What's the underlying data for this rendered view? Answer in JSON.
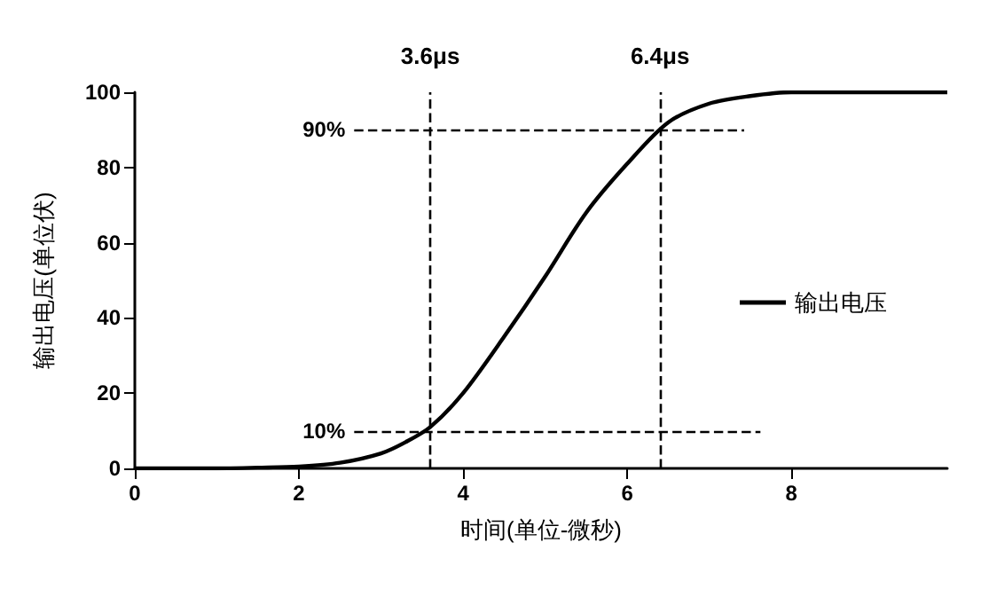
{
  "chart_data": {
    "type": "line",
    "xlabel": "时间(单位-微秒)",
    "ylabel": "输出电压(单位伏)",
    "x": [
      0,
      1,
      1.5,
      2,
      2.5,
      3,
      3.3,
      3.6,
      4,
      4.5,
      5,
      5.5,
      6,
      6.5,
      7,
      7.5,
      8,
      9,
      9.9
    ],
    "series": [
      {
        "name": "输出电压",
        "color": "#000000",
        "values": [
          0,
          0,
          0.2,
          0.5,
          1.5,
          4,
          7,
          11,
          20,
          35,
          51,
          68,
          81,
          92,
          97,
          99,
          100,
          100,
          100
        ]
      }
    ],
    "xlim": [
      0,
      9.9
    ],
    "xticks": [
      0,
      2,
      4,
      6,
      8
    ],
    "ylim": [
      0,
      100
    ],
    "yticks": [
      0,
      20,
      40,
      60,
      80,
      100
    ],
    "grid": false,
    "legend": "right",
    "marker": "none",
    "line_style": "solid",
    "ref_lines": [
      {
        "axis": "x",
        "value": 3.6,
        "label": "3.6μs",
        "line_style": "dashed",
        "color": "#000000"
      },
      {
        "axis": "x",
        "value": 6.4,
        "label": "6.4μs",
        "line_style": "dashed",
        "color": "#000000"
      },
      {
        "axis": "y",
        "value": 90,
        "label": "90%",
        "line_style": "dashed",
        "color": "#000000"
      },
      {
        "axis": "y",
        "value": 10,
        "label": "10%",
        "line_style": "dashed",
        "color": "#000000"
      }
    ]
  }
}
